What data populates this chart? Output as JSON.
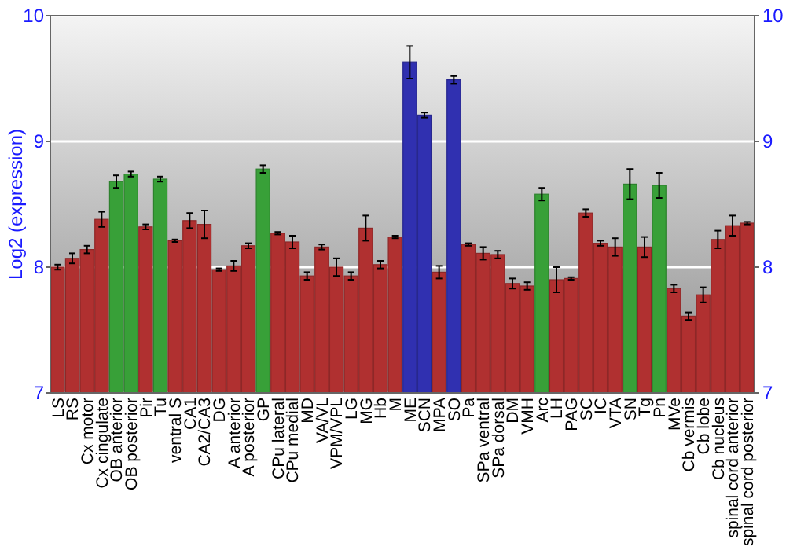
{
  "chart_data": {
    "type": "bar",
    "ylabel": "Log2 (expression)",
    "categories": [
      "LS",
      "RS",
      "Cx motor",
      "Cx cingulate",
      "OB anterior",
      "OB posterior",
      "Pir",
      "Tu",
      "ventral S",
      "CA1",
      "CA2/CA3",
      "DG",
      "A anterior",
      "A posterior",
      "GP",
      "CPu lateral",
      "CPu medial",
      "MD",
      "VA/VL",
      "VPM/VPL",
      "LG",
      "MG",
      "Hb",
      "M",
      "ME",
      "SCN",
      "MPA",
      "SO",
      "Pa",
      "SPa ventral",
      "SPa dorsal",
      "DM",
      "VMH",
      "Arc",
      "LH",
      "PAG",
      "SC",
      "IC",
      "VTA",
      "SN",
      "Tg",
      "Pn",
      "MVe",
      "Cb vermis",
      "Cb lobe",
      "Cb nucleus",
      "spinal cord anterior",
      "spinal cord posterior"
    ],
    "values": [
      8.0,
      8.07,
      8.14,
      8.38,
      8.68,
      8.74,
      8.32,
      8.7,
      8.21,
      8.37,
      8.34,
      7.98,
      8.01,
      8.17,
      8.78,
      8.27,
      8.2,
      7.93,
      8.16,
      8.0,
      7.93,
      8.31,
      8.02,
      8.24,
      9.63,
      9.21,
      7.96,
      9.49,
      8.18,
      8.11,
      8.1,
      7.87,
      7.85,
      8.58,
      7.9,
      7.91,
      8.43,
      8.19,
      8.16,
      8.66,
      8.16,
      8.65,
      7.83,
      7.61,
      7.78,
      8.22,
      8.33,
      8.35
    ],
    "errors": [
      0.02,
      0.04,
      0.03,
      0.06,
      0.05,
      0.02,
      0.02,
      0.02,
      0.01,
      0.06,
      0.11,
      0.01,
      0.04,
      0.02,
      0.03,
      0.01,
      0.05,
      0.03,
      0.02,
      0.07,
      0.03,
      0.1,
      0.03,
      0.01,
      0.13,
      0.02,
      0.05,
      0.03,
      0.01,
      0.05,
      0.03,
      0.04,
      0.03,
      0.05,
      0.1,
      0.01,
      0.03,
      0.02,
      0.07,
      0.12,
      0.08,
      0.1,
      0.03,
      0.03,
      0.06,
      0.07,
      0.08,
      0.01
    ],
    "colors": [
      "#b03030",
      "#b03030",
      "#b03030",
      "#b03030",
      "#38a038",
      "#38a038",
      "#b03030",
      "#38a038",
      "#b03030",
      "#b03030",
      "#b03030",
      "#b03030",
      "#b03030",
      "#b03030",
      "#38a038",
      "#b03030",
      "#b03030",
      "#b03030",
      "#b03030",
      "#b03030",
      "#b03030",
      "#b03030",
      "#b03030",
      "#b03030",
      "#3030b0",
      "#3030b0",
      "#b03030",
      "#3030b0",
      "#b03030",
      "#b03030",
      "#b03030",
      "#b03030",
      "#b03030",
      "#38a038",
      "#b03030",
      "#b03030",
      "#b03030",
      "#b03030",
      "#b03030",
      "#38a038",
      "#b03030",
      "#38a038",
      "#b03030",
      "#b03030",
      "#b03030",
      "#b03030",
      "#b03030",
      "#b03030"
    ],
    "ylim": [
      7,
      10
    ],
    "yticks": [
      7,
      8,
      9,
      10
    ],
    "y2lim": [
      7,
      10
    ],
    "y2ticks": [
      7,
      8,
      9,
      10
    ],
    "grid": "y"
  }
}
